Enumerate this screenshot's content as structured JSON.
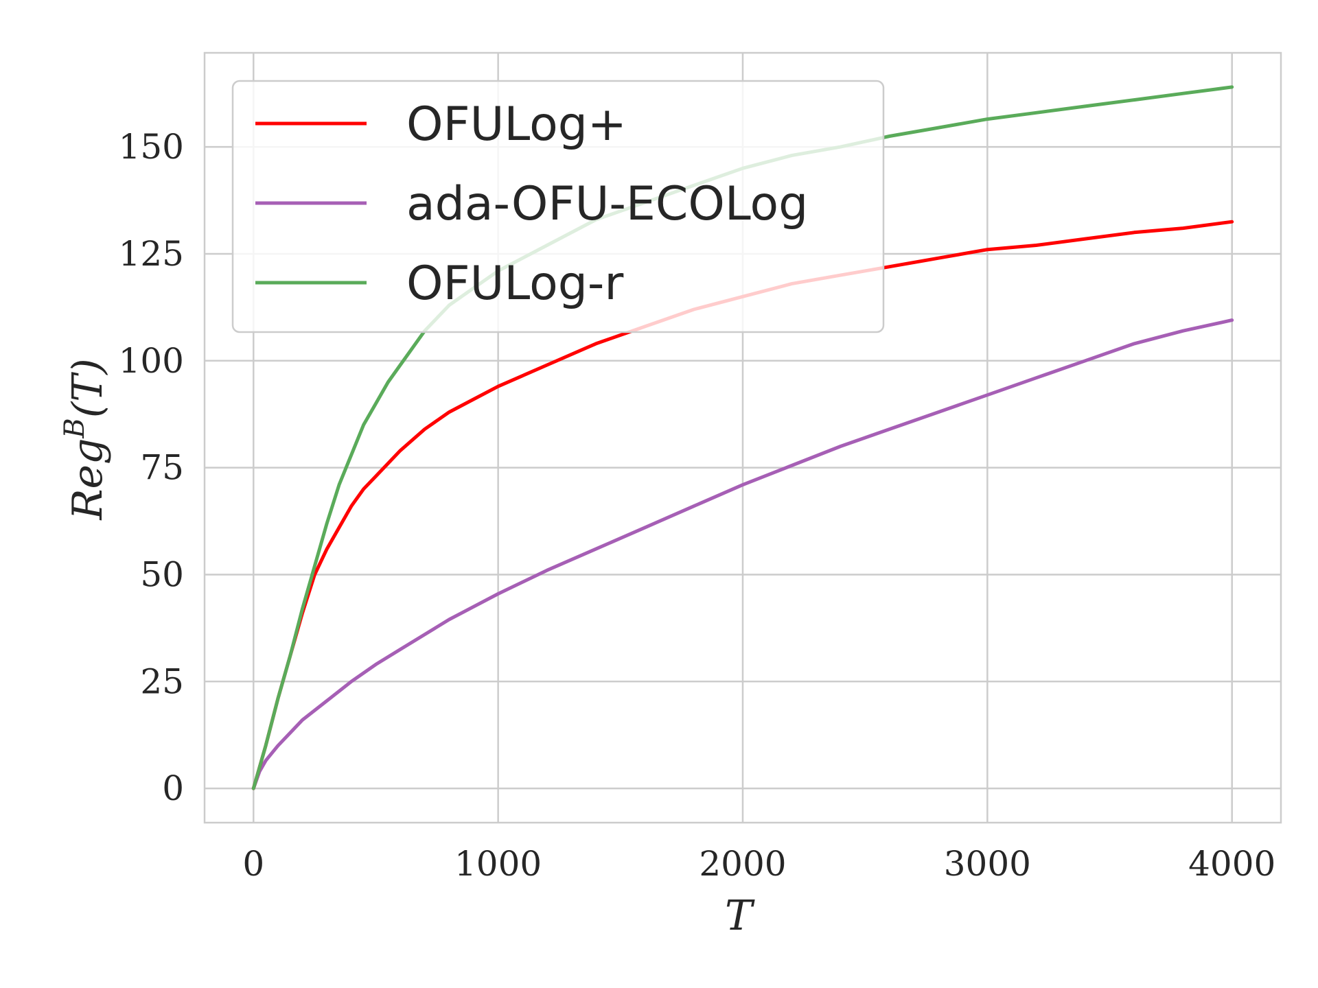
{
  "chart_data": {
    "type": "line",
    "xlabel": "T",
    "ylabel_base": "Reg",
    "ylabel_sup": "B",
    "ylabel_arg": "(T)",
    "xlim": [
      -200,
      4200
    ],
    "ylim": [
      -8,
      172
    ],
    "xticks": [
      0,
      1000,
      2000,
      3000,
      4000
    ],
    "xtick_labels": [
      "0",
      "1000",
      "2000",
      "3000",
      "4000"
    ],
    "yticks": [
      0,
      25,
      50,
      75,
      100,
      125,
      150
    ],
    "ytick_labels": [
      "0",
      "25",
      "50",
      "75",
      "100",
      "125",
      "150"
    ],
    "grid": true,
    "legend_position": "upper-left",
    "series": [
      {
        "name": "OFULog+",
        "color": "#ff0000",
        "x": [
          0,
          50,
          100,
          150,
          200,
          250,
          300,
          350,
          400,
          450,
          500,
          600,
          700,
          800,
          900,
          1000,
          1200,
          1400,
          1600,
          1800,
          2000,
          2200,
          2400,
          2600,
          2800,
          3000,
          3200,
          3400,
          3600,
          3800,
          4000
        ],
        "y": [
          0,
          10,
          21,
          31,
          41,
          50,
          56,
          61,
          66,
          70,
          73,
          79,
          84,
          88,
          91,
          94,
          99,
          104,
          108,
          112,
          115,
          118,
          120,
          122,
          124,
          126,
          127,
          128.5,
          130,
          131,
          132.5
        ]
      },
      {
        "name": "ada-OFU-ECOLog",
        "color": "#a65fb5",
        "x": [
          0,
          25,
          50,
          100,
          150,
          200,
          300,
          400,
          500,
          600,
          700,
          800,
          1000,
          1200,
          1400,
          1600,
          1800,
          2000,
          2200,
          2400,
          2600,
          2800,
          3000,
          3200,
          3400,
          3600,
          3800,
          4000
        ],
        "y": [
          0,
          4,
          6.5,
          10,
          13,
          16,
          20.5,
          25,
          29,
          32.5,
          36,
          39.5,
          45.5,
          51,
          56,
          61,
          66,
          71,
          75.5,
          80,
          84,
          88,
          92,
          96,
          100,
          104,
          107,
          109.5
        ]
      },
      {
        "name": "OFULog-r",
        "color": "#5aab5a",
        "x": [
          0,
          50,
          100,
          150,
          200,
          250,
          300,
          350,
          400,
          450,
          500,
          550,
          600,
          700,
          800,
          900,
          1000,
          1200,
          1400,
          1600,
          1800,
          2000,
          2200,
          2400,
          2600,
          2800,
          3000,
          3200,
          3400,
          3600,
          3800,
          4000
        ],
        "y": [
          0,
          10,
          21,
          31,
          42,
          52,
          62,
          71,
          78,
          85,
          90,
          95,
          99,
          107,
          113,
          117,
          121,
          127,
          133,
          137,
          141,
          145,
          148,
          150,
          152.5,
          154.5,
          156.5,
          158,
          159.5,
          161,
          162.5,
          164
        ]
      }
    ]
  }
}
